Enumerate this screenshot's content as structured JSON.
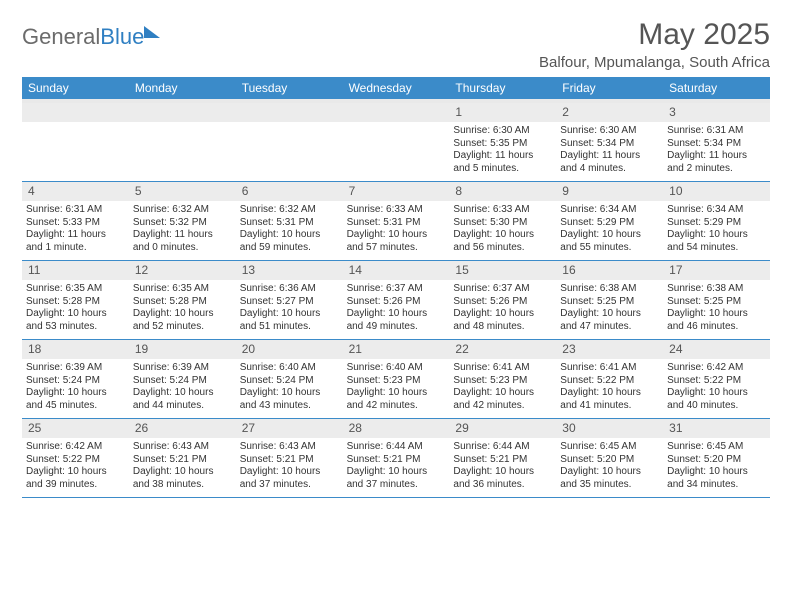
{
  "brand": {
    "name_part1": "General",
    "name_part2": "Blue"
  },
  "title": "May 2025",
  "subtitle": "Balfour, Mpumalanga, South Africa",
  "colors": {
    "header_bg": "#3b8bc9",
    "header_text": "#ffffff",
    "daynum_bg": "#ececec",
    "text": "#333333",
    "brand_gray": "#6b6b6b",
    "brand_blue": "#2f7fc2",
    "divider": "#3b8bc9"
  },
  "day_labels": [
    "Sunday",
    "Monday",
    "Tuesday",
    "Wednesday",
    "Thursday",
    "Friday",
    "Saturday"
  ],
  "weeks": [
    [
      null,
      null,
      null,
      null,
      {
        "n": "1",
        "sr": "6:30 AM",
        "ss": "5:35 PM",
        "dl": "11 hours and 5 minutes."
      },
      {
        "n": "2",
        "sr": "6:30 AM",
        "ss": "5:34 PM",
        "dl": "11 hours and 4 minutes."
      },
      {
        "n": "3",
        "sr": "6:31 AM",
        "ss": "5:34 PM",
        "dl": "11 hours and 2 minutes."
      }
    ],
    [
      {
        "n": "4",
        "sr": "6:31 AM",
        "ss": "5:33 PM",
        "dl": "11 hours and 1 minute."
      },
      {
        "n": "5",
        "sr": "6:32 AM",
        "ss": "5:32 PM",
        "dl": "11 hours and 0 minutes."
      },
      {
        "n": "6",
        "sr": "6:32 AM",
        "ss": "5:31 PM",
        "dl": "10 hours and 59 minutes."
      },
      {
        "n": "7",
        "sr": "6:33 AM",
        "ss": "5:31 PM",
        "dl": "10 hours and 57 minutes."
      },
      {
        "n": "8",
        "sr": "6:33 AM",
        "ss": "5:30 PM",
        "dl": "10 hours and 56 minutes."
      },
      {
        "n": "9",
        "sr": "6:34 AM",
        "ss": "5:29 PM",
        "dl": "10 hours and 55 minutes."
      },
      {
        "n": "10",
        "sr": "6:34 AM",
        "ss": "5:29 PM",
        "dl": "10 hours and 54 minutes."
      }
    ],
    [
      {
        "n": "11",
        "sr": "6:35 AM",
        "ss": "5:28 PM",
        "dl": "10 hours and 53 minutes."
      },
      {
        "n": "12",
        "sr": "6:35 AM",
        "ss": "5:28 PM",
        "dl": "10 hours and 52 minutes."
      },
      {
        "n": "13",
        "sr": "6:36 AM",
        "ss": "5:27 PM",
        "dl": "10 hours and 51 minutes."
      },
      {
        "n": "14",
        "sr": "6:37 AM",
        "ss": "5:26 PM",
        "dl": "10 hours and 49 minutes."
      },
      {
        "n": "15",
        "sr": "6:37 AM",
        "ss": "5:26 PM",
        "dl": "10 hours and 48 minutes."
      },
      {
        "n": "16",
        "sr": "6:38 AM",
        "ss": "5:25 PM",
        "dl": "10 hours and 47 minutes."
      },
      {
        "n": "17",
        "sr": "6:38 AM",
        "ss": "5:25 PM",
        "dl": "10 hours and 46 minutes."
      }
    ],
    [
      {
        "n": "18",
        "sr": "6:39 AM",
        "ss": "5:24 PM",
        "dl": "10 hours and 45 minutes."
      },
      {
        "n": "19",
        "sr": "6:39 AM",
        "ss": "5:24 PM",
        "dl": "10 hours and 44 minutes."
      },
      {
        "n": "20",
        "sr": "6:40 AM",
        "ss": "5:24 PM",
        "dl": "10 hours and 43 minutes."
      },
      {
        "n": "21",
        "sr": "6:40 AM",
        "ss": "5:23 PM",
        "dl": "10 hours and 42 minutes."
      },
      {
        "n": "22",
        "sr": "6:41 AM",
        "ss": "5:23 PM",
        "dl": "10 hours and 42 minutes."
      },
      {
        "n": "23",
        "sr": "6:41 AM",
        "ss": "5:22 PM",
        "dl": "10 hours and 41 minutes."
      },
      {
        "n": "24",
        "sr": "6:42 AM",
        "ss": "5:22 PM",
        "dl": "10 hours and 40 minutes."
      }
    ],
    [
      {
        "n": "25",
        "sr": "6:42 AM",
        "ss": "5:22 PM",
        "dl": "10 hours and 39 minutes."
      },
      {
        "n": "26",
        "sr": "6:43 AM",
        "ss": "5:21 PM",
        "dl": "10 hours and 38 minutes."
      },
      {
        "n": "27",
        "sr": "6:43 AM",
        "ss": "5:21 PM",
        "dl": "10 hours and 37 minutes."
      },
      {
        "n": "28",
        "sr": "6:44 AM",
        "ss": "5:21 PM",
        "dl": "10 hours and 37 minutes."
      },
      {
        "n": "29",
        "sr": "6:44 AM",
        "ss": "5:21 PM",
        "dl": "10 hours and 36 minutes."
      },
      {
        "n": "30",
        "sr": "6:45 AM",
        "ss": "5:20 PM",
        "dl": "10 hours and 35 minutes."
      },
      {
        "n": "31",
        "sr": "6:45 AM",
        "ss": "5:20 PM",
        "dl": "10 hours and 34 minutes."
      }
    ]
  ],
  "labels": {
    "sunrise": "Sunrise: ",
    "sunset": "Sunset: ",
    "daylight": "Daylight: "
  }
}
